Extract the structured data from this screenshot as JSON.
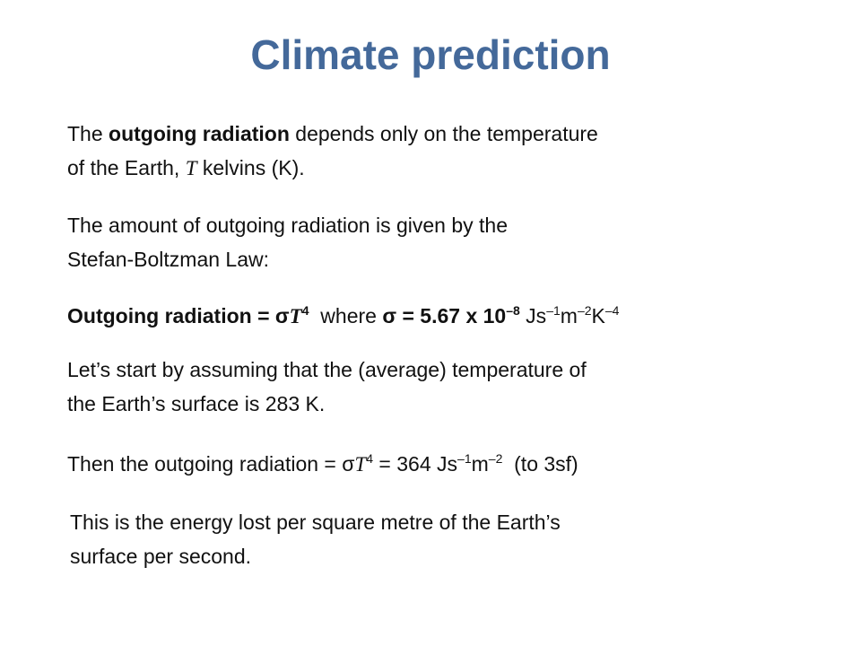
{
  "title": "Climate prediction",
  "paragraphs": [
    {
      "lines": [
        [
          {
            "text": "The "
          },
          {
            "text": "outgoing radiation",
            "style": "bold"
          },
          {
            "text": " depends only on the temperature"
          }
        ],
        [
          {
            "text": "of the Earth, "
          },
          {
            "text": "T",
            "style": "italic"
          },
          {
            "text": " kelvins (K)."
          }
        ]
      ]
    },
    {
      "lines": [
        [
          {
            "text": "The amount of outgoing radiation is given by the"
          }
        ],
        [
          {
            "text": "Stefan-Boltzman Law:"
          }
        ]
      ]
    },
    {
      "lines": [
        [
          {
            "text": "Outgoing radiation = σ",
            "style": "bold"
          },
          {
            "text": "T",
            "style": "bold-italic"
          },
          {
            "text": "4",
            "style": "bold-sup"
          },
          {
            "text": "  where "
          },
          {
            "text": "σ = 5.67 x 10",
            "style": "bold"
          },
          {
            "text": "–8",
            "style": "bold-sup"
          },
          {
            "text": " Js"
          },
          {
            "text": "–1",
            "style": "sup"
          },
          {
            "text": "m"
          },
          {
            "text": "–2",
            "style": "sup"
          },
          {
            "text": "K"
          },
          {
            "text": "–4",
            "style": "sup"
          }
        ]
      ]
    },
    {
      "lines": [
        [
          {
            "text": "Let’s start by assuming that the (average) temperature of"
          }
        ],
        [
          {
            "text": "the Earth’s surface is 283 K."
          }
        ]
      ]
    },
    {
      "lines": [
        [
          {
            "text": "Then the outgoing radiation = σ"
          },
          {
            "text": "T",
            "style": "italic"
          },
          {
            "text": "4",
            "style": "sup"
          },
          {
            "text": " = 364 Js"
          },
          {
            "text": "–1",
            "style": "sup"
          },
          {
            "text": "m"
          },
          {
            "text": "–2",
            "style": "sup"
          },
          {
            "text": "  (to 3sf)"
          }
        ]
      ]
    },
    {
      "lines": [
        [
          {
            "text": "This is the energy lost per square metre of the Earth’s"
          }
        ],
        [
          {
            "text": "surface per second."
          }
        ]
      ]
    }
  ]
}
